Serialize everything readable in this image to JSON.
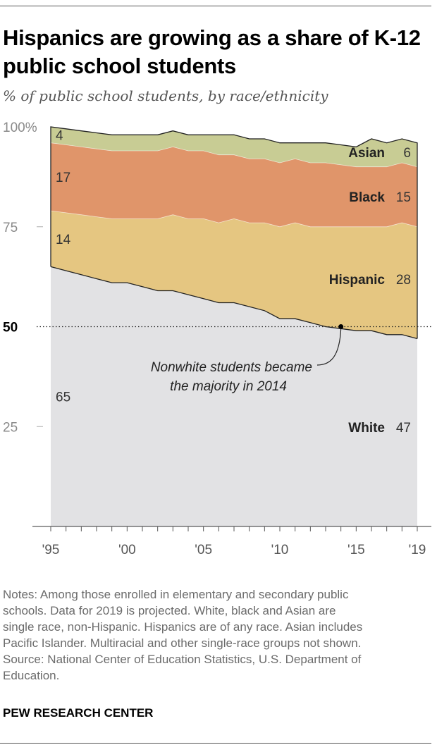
{
  "title": "Hispanics are growing as a share of K-12 public school students",
  "subtitle": "% of public school students, by race/ethnicity",
  "annotation": [
    "Nonwhite students became",
    "the majority in 2014"
  ],
  "notes": [
    "Notes: Among those enrolled in elementary and secondary public",
    "schools. Data for 2019 is projected. White, black and Asian are",
    "single race, non-Hispanic. Hispanics are of any race. Asian includes",
    "Pacific Islander. Multiracial and other single-race groups not shown.",
    "Source: National Center of Education Statistics, U.S. Department of",
    "Education."
  ],
  "brand": "PEW RESEARCH CENTER",
  "colors": {
    "White": "#e2e2e4",
    "Hispanic": "#e5c681",
    "Black": "#e0956a",
    "Asian": "#c8cc94"
  },
  "chart_data": {
    "type": "area",
    "stacked": true,
    "x": [
      1995,
      1996,
      1997,
      1998,
      1999,
      2000,
      2001,
      2002,
      2003,
      2004,
      2005,
      2006,
      2007,
      2008,
      2009,
      2010,
      2011,
      2012,
      2013,
      2014,
      2015,
      2016,
      2017,
      2018,
      2019
    ],
    "series": [
      {
        "name": "White",
        "values": [
          65,
          64,
          63,
          62,
          61,
          61,
          60,
          59,
          59,
          58,
          57,
          56,
          56,
          55,
          54,
          52,
          52,
          51,
          50,
          49.5,
          49,
          49,
          48,
          48,
          47
        ]
      },
      {
        "name": "Hispanic",
        "values": [
          14,
          14.5,
          15,
          15.5,
          16,
          16,
          17,
          18,
          19,
          19,
          20,
          20,
          21,
          21,
          22,
          23,
          24,
          24,
          25,
          25.5,
          26,
          26,
          27,
          28,
          28
        ]
      },
      {
        "name": "Black",
        "values": [
          17,
          17,
          17,
          17,
          17,
          17,
          17,
          17,
          17,
          17,
          17,
          17,
          16,
          16,
          16,
          16,
          16,
          16,
          16,
          15.5,
          15,
          15,
          15,
          15,
          15
        ]
      },
      {
        "name": "Asian",
        "values": [
          4,
          4,
          4,
          4,
          4,
          4,
          4,
          4,
          4,
          4,
          4,
          5,
          5,
          5,
          5,
          5,
          4,
          5,
          5,
          5,
          5,
          7,
          6,
          6,
          6
        ]
      }
    ],
    "ylim": [
      0,
      100
    ],
    "y_ticks": [
      {
        "value": 25,
        "label": "25"
      },
      {
        "value": 50,
        "label": "50"
      },
      {
        "value": 75,
        "label": "75"
      },
      {
        "value": 100,
        "label": "100%"
      }
    ],
    "x_tick_labels": [
      {
        "value": 1995,
        "label": "'95"
      },
      {
        "value": 2000,
        "label": "'00"
      },
      {
        "value": 2005,
        "label": "'05"
      },
      {
        "value": 2010,
        "label": "'10"
      },
      {
        "value": 2015,
        "label": "'15"
      },
      {
        "value": 2019,
        "label": "'19"
      }
    ],
    "start_labels": [
      "65",
      "14",
      "17",
      "4"
    ],
    "end_labels": [
      {
        "name": "White",
        "value": "47"
      },
      {
        "name": "Hispanic",
        "value": "28"
      },
      {
        "name": "Black",
        "value": "15"
      },
      {
        "name": "Asian",
        "value": "6"
      }
    ],
    "reference_line": 50,
    "highlight_point": {
      "x": 2014,
      "y": 50
    }
  }
}
